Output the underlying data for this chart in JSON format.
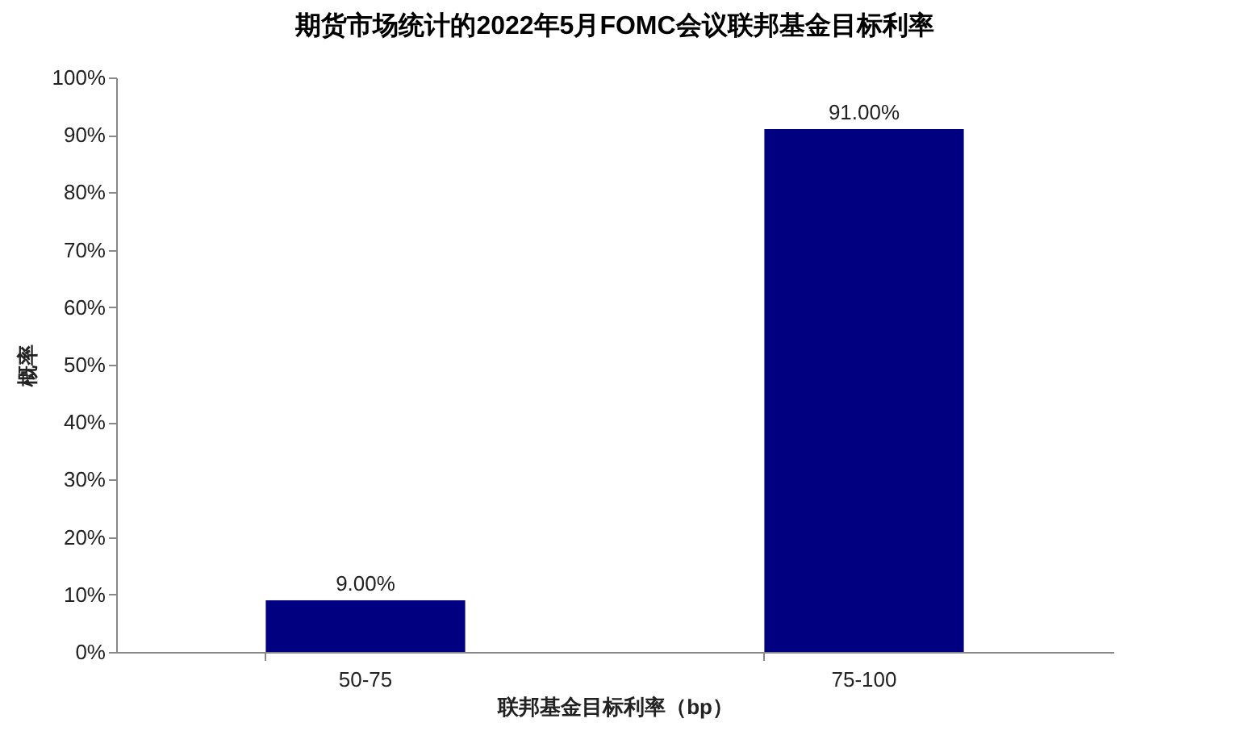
{
  "chart_data": {
    "type": "bar",
    "title": "期货市场统计的2022年5月FOMC会议联邦基金目标利率",
    "xlabel": "联邦基金目标利率（bp）",
    "ylabel": "概率",
    "categories": [
      "50-75",
      "75-100"
    ],
    "series": [
      {
        "color": "#000080",
        "values": [
          9,
          91
        ]
      }
    ],
    "value_labels": [
      "9.00%",
      "91.00%"
    ],
    "ylim": [
      0,
      100
    ],
    "yticks": [
      {
        "value": 0,
        "label": "0%"
      },
      {
        "value": 10,
        "label": "10%"
      },
      {
        "value": 20,
        "label": "20%"
      },
      {
        "value": 30,
        "label": "30%"
      },
      {
        "value": 40,
        "label": "40%"
      },
      {
        "value": 50,
        "label": "50%"
      },
      {
        "value": 60,
        "label": "60%"
      },
      {
        "value": 70,
        "label": "70%"
      },
      {
        "value": 80,
        "label": "80%"
      },
      {
        "value": 90,
        "label": "90%"
      },
      {
        "value": 100,
        "label": "100%"
      }
    ],
    "grid": false,
    "legend": false
  }
}
